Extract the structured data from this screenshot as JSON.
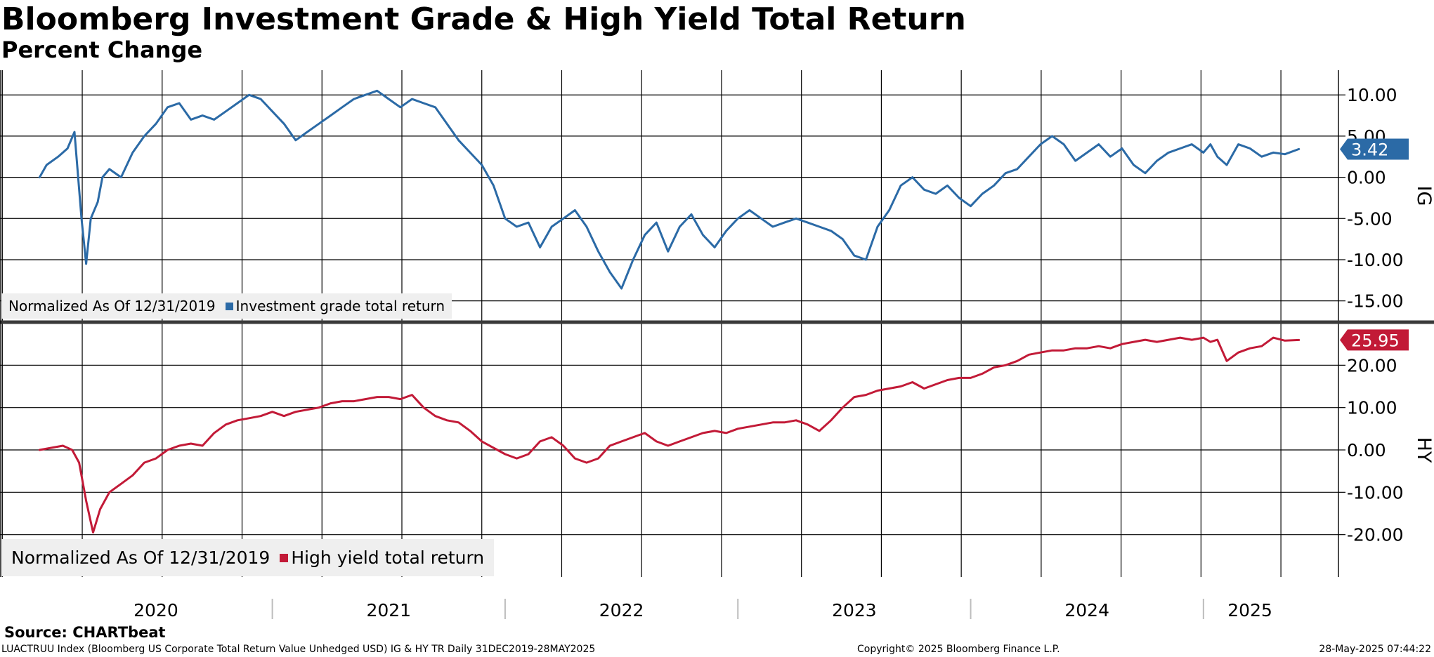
{
  "header": {
    "title": "Bloomberg Investment Grade & High Yield Total Return",
    "subtitle": "Percent Change"
  },
  "colors": {
    "ig": "#2b6aa6",
    "hy": "#c21a37",
    "grid": "#000000",
    "legend_bg": "#efefef"
  },
  "chart_data": [
    {
      "type": "line",
      "panel": "IG",
      "ylabel": "IG",
      "ylim": [
        -17.5,
        13
      ],
      "yticks": [
        -15,
        -10,
        -5,
        0,
        5,
        10
      ],
      "ytick_labels": [
        "-15.00",
        "-10.00",
        "-5.00",
        "0.00",
        "5.00",
        "10.00"
      ],
      "last_value_label": "3.42",
      "legend": {
        "prefix": "Normalized As Of 12/31/2019",
        "series_label": "Investment grade total return"
      },
      "series": [
        {
          "name": "Investment grade total return",
          "x": [
            2020.0,
            2020.03,
            2020.08,
            2020.12,
            2020.15,
            2020.18,
            2020.2,
            2020.22,
            2020.25,
            2020.27,
            2020.3,
            2020.35,
            2020.4,
            2020.45,
            2020.5,
            2020.55,
            2020.6,
            2020.65,
            2020.7,
            2020.75,
            2020.8,
            2020.85,
            2020.9,
            2020.95,
            2021.0,
            2021.05,
            2021.1,
            2021.15,
            2021.2,
            2021.25,
            2021.3,
            2021.35,
            2021.4,
            2021.45,
            2021.5,
            2021.55,
            2021.6,
            2021.65,
            2021.7,
            2021.75,
            2021.8,
            2021.85,
            2021.9,
            2021.95,
            2022.0,
            2022.05,
            2022.1,
            2022.15,
            2022.2,
            2022.25,
            2022.3,
            2022.35,
            2022.4,
            2022.45,
            2022.5,
            2022.55,
            2022.6,
            2022.65,
            2022.7,
            2022.75,
            2022.8,
            2022.85,
            2022.9,
            2022.95,
            2023.0,
            2023.05,
            2023.1,
            2023.15,
            2023.2,
            2023.25,
            2023.3,
            2023.35,
            2023.4,
            2023.45,
            2023.5,
            2023.55,
            2023.6,
            2023.65,
            2023.7,
            2023.75,
            2023.8,
            2023.85,
            2023.9,
            2023.95,
            2024.0,
            2024.05,
            2024.1,
            2024.15,
            2024.2,
            2024.25,
            2024.3,
            2024.35,
            2024.4,
            2024.45,
            2024.5,
            2024.55,
            2024.6,
            2024.65,
            2024.7,
            2024.75,
            2024.8,
            2024.85,
            2024.9,
            2024.95,
            2025.0,
            2025.03,
            2025.06,
            2025.1,
            2025.15,
            2025.2,
            2025.25,
            2025.3,
            2025.35,
            2025.41
          ],
          "values": [
            0.0,
            1.5,
            2.5,
            3.5,
            5.5,
            -5.0,
            -10.5,
            -5.0,
            -3.0,
            0.0,
            1.0,
            0.0,
            3.0,
            5.0,
            6.5,
            8.5,
            9.0,
            7.0,
            7.5,
            7.0,
            8.0,
            9.0,
            10.0,
            9.5,
            8.0,
            6.5,
            4.5,
            5.5,
            6.5,
            7.5,
            8.5,
            9.5,
            10.0,
            10.5,
            9.5,
            8.5,
            9.5,
            9.0,
            8.5,
            6.5,
            4.5,
            3.0,
            1.5,
            -1.0,
            -5.0,
            -6.0,
            -5.5,
            -8.5,
            -6.0,
            -5.0,
            -4.0,
            -6.0,
            -9.0,
            -11.5,
            -13.5,
            -10.0,
            -7.0,
            -5.5,
            -9.0,
            -6.0,
            -4.5,
            -7.0,
            -8.5,
            -6.5,
            -5.0,
            -4.0,
            -5.0,
            -6.0,
            -5.5,
            -5.0,
            -5.5,
            -6.0,
            -6.5,
            -7.5,
            -9.5,
            -10.0,
            -6.0,
            -4.0,
            -1.0,
            0.0,
            -1.5,
            -2.0,
            -1.0,
            -2.5,
            -3.5,
            -2.0,
            -1.0,
            0.5,
            1.0,
            2.5,
            4.0,
            5.0,
            4.0,
            2.0,
            3.0,
            4.0,
            2.5,
            3.5,
            1.5,
            0.5,
            2.0,
            3.0,
            3.5,
            4.0,
            3.0,
            4.0,
            2.5,
            1.5,
            4.0,
            3.5,
            2.5,
            3.0,
            2.8,
            3.42
          ]
        }
      ]
    },
    {
      "type": "line",
      "panel": "HY",
      "ylabel": "HY",
      "ylim": [
        -30,
        30
      ],
      "yticks": [
        -20,
        -10,
        0,
        10,
        20
      ],
      "ytick_labels": [
        "-20.00",
        "-10.00",
        "0.00",
        "10.00",
        "20.00"
      ],
      "last_value_label": "25.95",
      "legend": {
        "prefix": "Normalized As Of 12/31/2019",
        "series_label": "High yield total return"
      },
      "series": [
        {
          "name": "High yield total return",
          "x": [
            2020.0,
            2020.05,
            2020.1,
            2020.14,
            2020.17,
            2020.2,
            2020.23,
            2020.26,
            2020.3,
            2020.35,
            2020.4,
            2020.45,
            2020.5,
            2020.55,
            2020.6,
            2020.65,
            2020.7,
            2020.75,
            2020.8,
            2020.85,
            2020.9,
            2020.95,
            2021.0,
            2021.05,
            2021.1,
            2021.15,
            2021.2,
            2021.25,
            2021.3,
            2021.35,
            2021.4,
            2021.45,
            2021.5,
            2021.55,
            2021.6,
            2021.65,
            2021.7,
            2021.75,
            2021.8,
            2021.85,
            2021.9,
            2021.95,
            2022.0,
            2022.05,
            2022.1,
            2022.15,
            2022.2,
            2022.25,
            2022.3,
            2022.35,
            2022.4,
            2022.45,
            2022.5,
            2022.55,
            2022.6,
            2022.65,
            2022.7,
            2022.75,
            2022.8,
            2022.85,
            2022.9,
            2022.95,
            2023.0,
            2023.05,
            2023.1,
            2023.15,
            2023.2,
            2023.25,
            2023.3,
            2023.35,
            2023.4,
            2023.45,
            2023.5,
            2023.55,
            2023.6,
            2023.65,
            2023.7,
            2023.75,
            2023.8,
            2023.85,
            2023.9,
            2023.95,
            2024.0,
            2024.05,
            2024.1,
            2024.15,
            2024.2,
            2024.25,
            2024.3,
            2024.35,
            2024.4,
            2024.45,
            2024.5,
            2024.55,
            2024.6,
            2024.65,
            2024.7,
            2024.75,
            2024.8,
            2024.85,
            2024.9,
            2024.95,
            2025.0,
            2025.03,
            2025.06,
            2025.1,
            2025.15,
            2025.2,
            2025.25,
            2025.3,
            2025.35,
            2025.41
          ],
          "values": [
            0.0,
            0.5,
            1.0,
            0.0,
            -3.0,
            -12.0,
            -19.5,
            -14.0,
            -10.0,
            -8.0,
            -6.0,
            -3.0,
            -2.0,
            0.0,
            1.0,
            1.5,
            1.0,
            4.0,
            6.0,
            7.0,
            7.5,
            8.0,
            9.0,
            8.0,
            9.0,
            9.5,
            10.0,
            11.0,
            11.5,
            11.5,
            12.0,
            12.5,
            12.5,
            12.0,
            13.0,
            10.0,
            8.0,
            7.0,
            6.5,
            4.5,
            2.0,
            0.5,
            -1.0,
            -2.0,
            -1.0,
            2.0,
            3.0,
            1.0,
            -2.0,
            -3.0,
            -2.0,
            1.0,
            2.0,
            3.0,
            4.0,
            2.0,
            1.0,
            2.0,
            3.0,
            4.0,
            4.5,
            4.0,
            5.0,
            5.5,
            6.0,
            6.5,
            6.5,
            7.0,
            6.0,
            4.5,
            7.0,
            10.0,
            12.5,
            13.0,
            14.0,
            14.5,
            15.0,
            16.0,
            14.5,
            15.5,
            16.5,
            17.0,
            17.0,
            18.0,
            19.5,
            20.0,
            21.0,
            22.5,
            23.0,
            23.5,
            23.5,
            24.0,
            24.0,
            24.5,
            24.0,
            25.0,
            25.5,
            26.0,
            25.5,
            26.0,
            26.5,
            26.0,
            26.5,
            25.5,
            26.0,
            21.0,
            23.0,
            24.0,
            24.5,
            26.5,
            25.8,
            25.95
          ]
        }
      ]
    }
  ],
  "x_axis": {
    "year_labels": [
      "2020",
      "2021",
      "2022",
      "2023",
      "2024",
      "2025"
    ]
  },
  "footer": {
    "source": "Source: CHARTbeat",
    "left": "LUACTRUU Index (Bloomberg US Corporate Total Return Value Unhedged USD) IG & HY TR  Daily 31DEC2019-28MAY2025",
    "center": "Copyright© 2025 Bloomberg Finance L.P.",
    "right": "28-May-2025 07:44:22"
  }
}
